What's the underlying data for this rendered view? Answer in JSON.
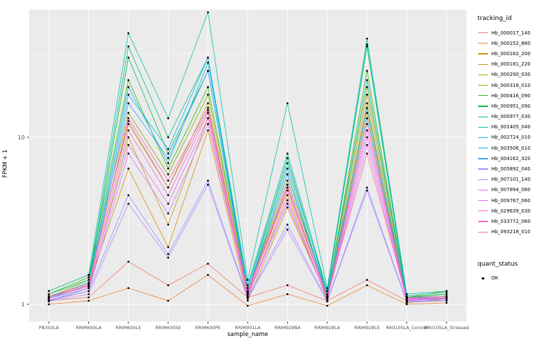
{
  "chart_data": {
    "type": "line",
    "title": "",
    "xlabel": "sample_name",
    "ylabel": "FPKM + 1",
    "y_scale": "log10",
    "ylim": [
      0.79,
      58
    ],
    "y_ticks": [
      1,
      10
    ],
    "y_tick_labels": [
      "1",
      "10"
    ],
    "y_minor_ticks": [
      3.162,
      31.62
    ],
    "grid": true,
    "panel_bg": "#EBEBEB",
    "grid_color": "#FFFFFF",
    "point_color": "#000000",
    "legend_position": "right",
    "legend_title": "tracking_id",
    "legend2_title": "quant_status",
    "quant_status_label": "OK",
    "categories": [
      "PB350LA",
      "RRIM600LA",
      "RRIM600LE",
      "RRIM600SE",
      "RRIM600PE",
      "RRIM901LA",
      "RRIM928BA",
      "RRIM928LA",
      "RRIM928LE",
      "RRII105LA_Control",
      "RRII105LA_Stressed"
    ],
    "series": [
      {
        "name": "Hb_000017_140",
        "color": "#F8766D",
        "values": [
          1.05,
          1.1,
          1.8,
          1.3,
          1.75,
          1.1,
          1.3,
          1.05,
          1.4,
          1.05,
          1.1
        ]
      },
      {
        "name": "Hb_000152_880",
        "color": "#EA8331",
        "values": [
          1.0,
          1.05,
          1.25,
          1.05,
          1.5,
          0.98,
          1.15,
          0.98,
          1.3,
          1.0,
          1.02
        ]
      },
      {
        "name": "Hb_000162_200",
        "color": "#D89000",
        "values": [
          1.1,
          1.3,
          6.5,
          2.2,
          11.0,
          1.05,
          3.8,
          1.1,
          14.0,
          1.05,
          1.1
        ]
      },
      {
        "name": "Hb_000181_220",
        "color": "#C09B00",
        "values": [
          1.05,
          1.2,
          10.0,
          3.0,
          13.0,
          1.1,
          4.5,
          1.05,
          16.0,
          1.02,
          1.08
        ]
      },
      {
        "name": "Hb_000290_030",
        "color": "#A3A500",
        "values": [
          1.1,
          1.4,
          12.0,
          5.0,
          16.0,
          1.15,
          5.0,
          1.1,
          18.0,
          1.05,
          1.1
        ]
      },
      {
        "name": "Hb_000318_010",
        "color": "#7CAE00",
        "values": [
          1.2,
          1.5,
          14.0,
          6.0,
          18.0,
          1.2,
          5.5,
          1.15,
          20.0,
          1.1,
          1.2
        ]
      },
      {
        "name": "Hb_000416_090",
        "color": "#39B600",
        "values": [
          1.15,
          1.45,
          22.0,
          6.5,
          20.0,
          1.2,
          6.0,
          1.15,
          25.0,
          1.1,
          1.15
        ]
      },
      {
        "name": "Hb_000951_090",
        "color": "#00BB4E",
        "values": [
          1.1,
          1.35,
          30.0,
          8.0,
          25.0,
          1.25,
          7.0,
          1.2,
          35.0,
          1.1,
          1.15
        ]
      },
      {
        "name": "Hb_000977_030",
        "color": "#00C087",
        "values": [
          1.15,
          1.4,
          35.0,
          10.0,
          30.0,
          1.3,
          8.0,
          1.2,
          36.0,
          1.12,
          1.18
        ]
      },
      {
        "name": "Hb_001405_040",
        "color": "#00C0B2",
        "values": [
          1.2,
          1.5,
          42.0,
          13.0,
          56.0,
          1.4,
          16.0,
          1.25,
          39.0,
          1.15,
          1.2
        ]
      },
      {
        "name": "Hb_002724_010",
        "color": "#00BCD8",
        "values": [
          1.1,
          1.35,
          20.0,
          7.0,
          28.0,
          1.25,
          7.5,
          1.15,
          22.0,
          1.1,
          1.12
        ]
      },
      {
        "name": "Hb_003506_010",
        "color": "#00B0F6",
        "values": [
          1.08,
          1.3,
          18.0,
          8.5,
          30.0,
          1.2,
          6.5,
          1.12,
          15.0,
          1.08,
          1.1
        ]
      },
      {
        "name": "Hb_004162_320",
        "color": "#35A2FF",
        "values": [
          1.05,
          1.25,
          16.0,
          7.5,
          25.0,
          1.18,
          6.0,
          1.1,
          13.0,
          1.06,
          1.08
        ]
      },
      {
        "name": "Hb_005892_040",
        "color": "#9590FF",
        "values": [
          1.05,
          1.2,
          4.5,
          2.0,
          5.5,
          1.1,
          3.0,
          1.05,
          5.0,
          1.04,
          1.06
        ]
      },
      {
        "name": "Hb_007101_140",
        "color": "#B983FF",
        "values": [
          1.04,
          1.15,
          4.0,
          1.9,
          5.2,
          1.08,
          2.8,
          1.04,
          4.8,
          1.03,
          1.05
        ]
      },
      {
        "name": "Hb_007894_080",
        "color": "#D376FF",
        "values": [
          1.06,
          1.2,
          8.0,
          3.5,
          12.0,
          1.12,
          4.0,
          1.08,
          9.0,
          1.05,
          1.08
        ]
      },
      {
        "name": "Hb_009767_060",
        "color": "#E76BF3",
        "values": [
          1.08,
          1.25,
          9.0,
          4.0,
          13.0,
          1.14,
          4.2,
          1.08,
          10.0,
          1.06,
          1.09
        ]
      },
      {
        "name": "Hb_029639_030",
        "color": "#FD61D1",
        "values": [
          1.1,
          1.28,
          11.0,
          4.5,
          14.0,
          1.16,
          4.8,
          1.1,
          11.0,
          1.07,
          1.1
        ]
      },
      {
        "name": "Hb_033772_060",
        "color": "#FF62BC",
        "values": [
          1.1,
          1.3,
          13.0,
          5.5,
          15.0,
          1.18,
          5.2,
          1.1,
          12.0,
          1.08,
          1.12
        ]
      },
      {
        "name": "Hb_093218_010",
        "color": "#FF6A98",
        "values": [
          1.12,
          1.32,
          12.5,
          5.0,
          14.5,
          1.2,
          5.0,
          1.12,
          8.0,
          1.09,
          1.12
        ]
      }
    ]
  }
}
